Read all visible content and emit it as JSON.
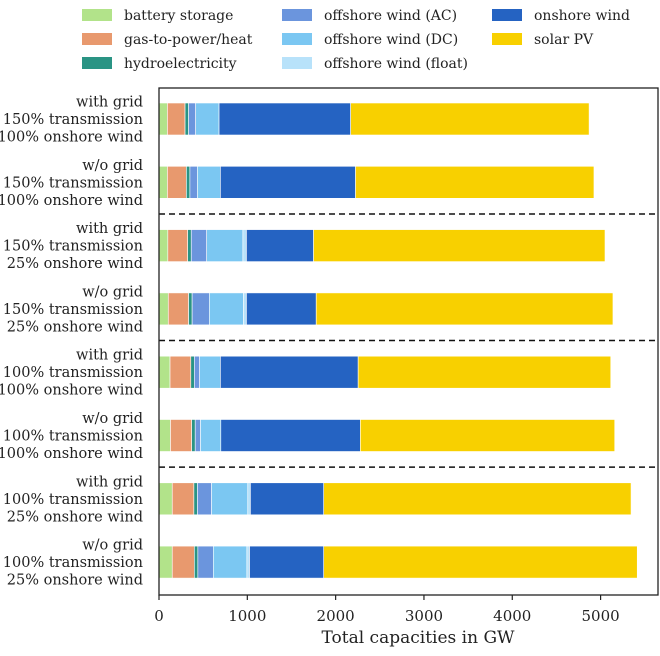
{
  "chart_data": {
    "type": "bar",
    "orientation": "horizontal",
    "stacked": true,
    "xlabel": "Total capacities in GW",
    "xlim": [
      0,
      5650
    ],
    "xticks": [
      "0",
      "1000",
      "2000",
      "3000",
      "4000",
      "5000"
    ],
    "xtick_values": [
      0,
      1000,
      2000,
      3000,
      4000,
      5000
    ],
    "grid": false,
    "legend_position": "top",
    "categories": [
      [
        "with grid",
        "150% transmission",
        "100% onshore wind"
      ],
      [
        "w/o grid",
        "150% transmission",
        "100% onshore wind"
      ],
      [
        "with grid",
        "150% transmission",
        "25% onshore wind"
      ],
      [
        "w/o grid",
        "150% transmission",
        "25% onshore wind"
      ],
      [
        "with grid",
        "100% transmission",
        "100% onshore wind"
      ],
      [
        "w/o grid",
        "100% transmission",
        "100% onshore wind"
      ],
      [
        "with grid",
        "100% transmission",
        "25% onshore wind"
      ],
      [
        "w/o grid",
        "100% transmission",
        "25% onshore wind"
      ]
    ],
    "group_separators_after": [
      1,
      3,
      5
    ],
    "series": [
      {
        "name": "battery storage",
        "color": "#b2e38a",
        "values": [
          95,
          95,
          100,
          105,
          125,
          130,
          150,
          150
        ]
      },
      {
        "name": "gas-to-power/heat",
        "color": "#e8996e",
        "values": [
          200,
          215,
          225,
          230,
          235,
          240,
          245,
          250
        ]
      },
      {
        "name": "hydroelectricity",
        "color": "#2a9484",
        "values": [
          40,
          40,
          40,
          40,
          40,
          40,
          40,
          40
        ]
      },
      {
        "name": "offshore wind (AC)",
        "color": "#6b95dd",
        "values": [
          80,
          85,
          175,
          195,
          60,
          60,
          160,
          175
        ]
      },
      {
        "name": "offshore wind (DC)",
        "color": "#7bc7f2",
        "values": [
          265,
          260,
          410,
          385,
          235,
          230,
          410,
          380
        ]
      },
      {
        "name": "offshore wind (float)",
        "color": "#b8e2fa",
        "values": [
          0,
          0,
          40,
          35,
          0,
          0,
          30,
          30
        ]
      },
      {
        "name": "onshore wind",
        "color": "#2563c2",
        "values": [
          1490,
          1530,
          760,
          790,
          1560,
          1580,
          830,
          840
        ]
      },
      {
        "name": "solar PV",
        "color": "#f8d000",
        "values": [
          2700,
          2700,
          3300,
          3360,
          2860,
          2880,
          3480,
          3550
        ]
      }
    ]
  }
}
